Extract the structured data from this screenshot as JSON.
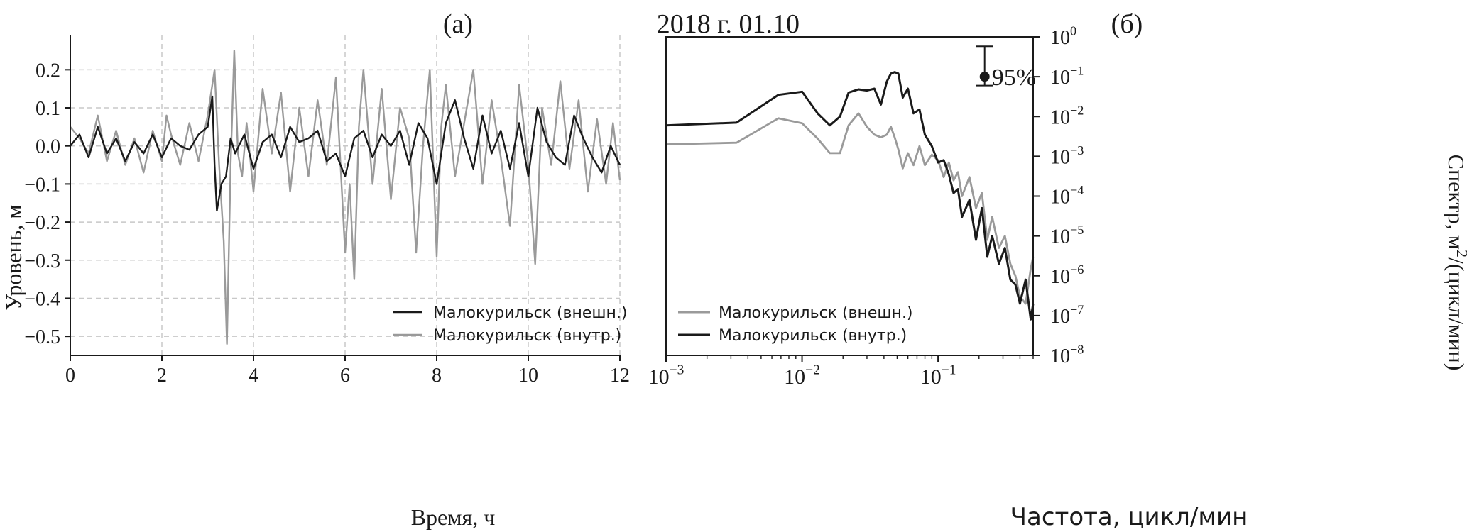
{
  "chart_data": [
    {
      "type": "line",
      "panel_label": "(a)",
      "annotation": "2018 г. 01.10",
      "xlabel": "Время, ч",
      "ylabel": "Уровень, м",
      "xlim": [
        0,
        12
      ],
      "ylim": [
        -0.55,
        0.29
      ],
      "xticks": [
        0,
        2,
        4,
        6,
        8,
        10,
        12
      ],
      "yticks": [
        -0.5,
        -0.4,
        -0.3,
        -0.2,
        -0.1,
        0.0,
        0.1,
        0.2
      ],
      "ytick_labels": [
        "−0.5",
        "−0.4",
        "−0.3",
        "−0.2",
        "−0.1",
        "0.0",
        "0.1",
        "0.2"
      ],
      "grid": "dashed",
      "legend_position": "lower-right",
      "series": [
        {
          "name": "Малокурильск (внешн.)",
          "color": "#1a1a1a",
          "x": [
            0,
            0.2,
            0.4,
            0.6,
            0.8,
            1.0,
            1.2,
            1.4,
            1.6,
            1.8,
            2.0,
            2.2,
            2.4,
            2.6,
            2.8,
            3.0,
            3.1,
            3.15,
            3.2,
            3.3,
            3.4,
            3.5,
            3.6,
            3.8,
            4.0,
            4.2,
            4.4,
            4.6,
            4.8,
            5.0,
            5.2,
            5.4,
            5.6,
            5.8,
            6.0,
            6.2,
            6.4,
            6.6,
            6.8,
            7.0,
            7.2,
            7.4,
            7.6,
            7.8,
            8.0,
            8.2,
            8.4,
            8.6,
            8.8,
            9.0,
            9.2,
            9.4,
            9.6,
            9.8,
            10.0,
            10.2,
            10.4,
            10.6,
            10.8,
            11.0,
            11.2,
            11.4,
            11.6,
            11.8,
            12.0
          ],
          "y": [
            0.0,
            0.03,
            -0.03,
            0.05,
            -0.02,
            0.02,
            -0.04,
            0.01,
            -0.02,
            0.03,
            -0.03,
            0.02,
            0.0,
            -0.01,
            0.03,
            0.05,
            0.13,
            -0.05,
            -0.17,
            -0.1,
            -0.08,
            0.02,
            -0.02,
            0.03,
            -0.06,
            0.01,
            0.03,
            -0.03,
            0.05,
            0.01,
            0.02,
            0.04,
            -0.04,
            -0.02,
            -0.08,
            0.02,
            0.04,
            -0.03,
            0.03,
            0.0,
            0.04,
            -0.05,
            0.06,
            0.02,
            -0.1,
            0.06,
            0.12,
            0.02,
            -0.06,
            0.08,
            -0.02,
            0.04,
            -0.06,
            0.06,
            -0.08,
            0.1,
            0.01,
            -0.03,
            -0.05,
            0.08,
            0.02,
            -0.03,
            -0.07,
            0.0,
            -0.05
          ]
        },
        {
          "name": "Малокурильск (внутр.)",
          "color": "#9a9a9a",
          "x": [
            0,
            0.2,
            0.4,
            0.6,
            0.8,
            1.0,
            1.2,
            1.4,
            1.6,
            1.8,
            2.0,
            2.1,
            2.2,
            2.4,
            2.6,
            2.8,
            3.0,
            3.15,
            3.25,
            3.35,
            3.42,
            3.5,
            3.58,
            3.66,
            3.75,
            3.85,
            4.0,
            4.2,
            4.4,
            4.6,
            4.8,
            5.0,
            5.2,
            5.4,
            5.6,
            5.8,
            6.0,
            6.1,
            6.2,
            6.3,
            6.4,
            6.6,
            6.8,
            7.0,
            7.2,
            7.4,
            7.55,
            7.7,
            7.85,
            8.0,
            8.1,
            8.2,
            8.4,
            8.6,
            8.8,
            9.0,
            9.2,
            9.4,
            9.6,
            9.8,
            10.0,
            10.15,
            10.3,
            10.5,
            10.7,
            10.9,
            11.1,
            11.3,
            11.5,
            11.7,
            11.85,
            12.0
          ],
          "y": [
            0.05,
            0.02,
            -0.02,
            0.08,
            -0.04,
            0.04,
            -0.05,
            0.02,
            -0.07,
            0.04,
            -0.04,
            0.08,
            0.03,
            -0.05,
            0.06,
            -0.04,
            0.08,
            0.2,
            -0.05,
            -0.25,
            -0.52,
            -0.05,
            0.25,
            -0.02,
            -0.08,
            0.06,
            -0.12,
            0.15,
            -0.02,
            0.14,
            -0.12,
            0.1,
            -0.08,
            0.12,
            -0.05,
            0.18,
            -0.28,
            -0.1,
            -0.35,
            0.05,
            0.2,
            -0.1,
            0.15,
            -0.14,
            0.1,
            0.02,
            -0.28,
            0.0,
            0.2,
            -0.29,
            0.05,
            0.16,
            -0.08,
            0.06,
            0.2,
            -0.1,
            0.12,
            -0.03,
            -0.21,
            0.16,
            -0.05,
            -0.31,
            0.1,
            -0.05,
            0.17,
            -0.06,
            0.12,
            -0.12,
            0.07,
            -0.1,
            0.06,
            -0.09
          ]
        }
      ]
    },
    {
      "type": "line",
      "panel_label": "(б)",
      "xlabel": "Частота, цикл/мин",
      "ylabel": "Спектр, м²/(цикл/мин)",
      "xscale": "log",
      "yscale": "log",
      "xlim": [
        0.001,
        0.5
      ],
      "ylim": [
        1e-08,
        1
      ],
      "x_tick_exponents": [
        "−3",
        "−2",
        "−1"
      ],
      "y_tick_exponents": [
        "0",
        "−1",
        "−2",
        "−3",
        "−4",
        "−5",
        "−6",
        "−7",
        "−8"
      ],
      "tick_base": "10",
      "confidence_label": "95%",
      "confidence_interval": {
        "freq": 0.22,
        "center": 0.1,
        "low": 0.06,
        "high": 0.58
      },
      "grid": "off",
      "legend_position": "lower-left",
      "series": [
        {
          "name": "Малокурильск (внешн.)",
          "color": "#9a9a9a",
          "x": [
            0.001,
            0.0033,
            0.0067,
            0.01,
            0.013,
            0.016,
            0.019,
            0.022,
            0.026,
            0.03,
            0.034,
            0.038,
            0.042,
            0.045,
            0.048,
            0.051,
            0.055,
            0.06,
            0.066,
            0.073,
            0.08,
            0.09,
            0.1,
            0.11,
            0.12,
            0.13,
            0.14,
            0.15,
            0.17,
            0.19,
            0.21,
            0.23,
            0.25,
            0.28,
            0.31,
            0.34,
            0.37,
            0.4,
            0.44,
            0.48,
            0.5
          ],
          "y": [
            0.002,
            0.0022,
            0.009,
            0.0068,
            0.0028,
            0.0012,
            0.0012,
            0.006,
            0.012,
            0.0055,
            0.0035,
            0.003,
            0.0035,
            0.0055,
            0.003,
            0.0015,
            0.0005,
            0.0012,
            0.0006,
            0.0018,
            0.0006,
            0.0011,
            0.0008,
            0.0003,
            0.0007,
            0.00025,
            0.0004,
            0.0001,
            0.0003,
            5e-05,
            0.00012,
            8e-06,
            3e-05,
            5e-06,
            1e-05,
            2e-06,
            1e-06,
            3e-07,
            2e-07,
            1.5e-06,
            3e-06
          ]
        },
        {
          "name": "Малокурильск (внутр.)",
          "color": "#1a1a1a",
          "x": [
            0.001,
            0.0033,
            0.0067,
            0.01,
            0.013,
            0.016,
            0.019,
            0.022,
            0.026,
            0.03,
            0.034,
            0.038,
            0.042,
            0.045,
            0.048,
            0.051,
            0.055,
            0.06,
            0.066,
            0.073,
            0.08,
            0.09,
            0.1,
            0.11,
            0.12,
            0.13,
            0.14,
            0.15,
            0.17,
            0.19,
            0.21,
            0.23,
            0.25,
            0.28,
            0.31,
            0.34,
            0.37,
            0.4,
            0.44,
            0.48,
            0.5
          ],
          "y": [
            0.006,
            0.007,
            0.035,
            0.042,
            0.012,
            0.006,
            0.01,
            0.04,
            0.048,
            0.045,
            0.05,
            0.02,
            0.075,
            0.12,
            0.13,
            0.12,
            0.03,
            0.05,
            0.012,
            0.015,
            0.0035,
            0.0018,
            0.0007,
            0.0008,
            0.00035,
            0.00012,
            0.00015,
            3e-05,
            8e-05,
            8e-06,
            5e-05,
            3e-06,
            1e-05,
            2e-06,
            5e-06,
            8e-07,
            6e-07,
            2e-07,
            8e-07,
            8e-08,
            2e-07
          ]
        }
      ]
    }
  ]
}
